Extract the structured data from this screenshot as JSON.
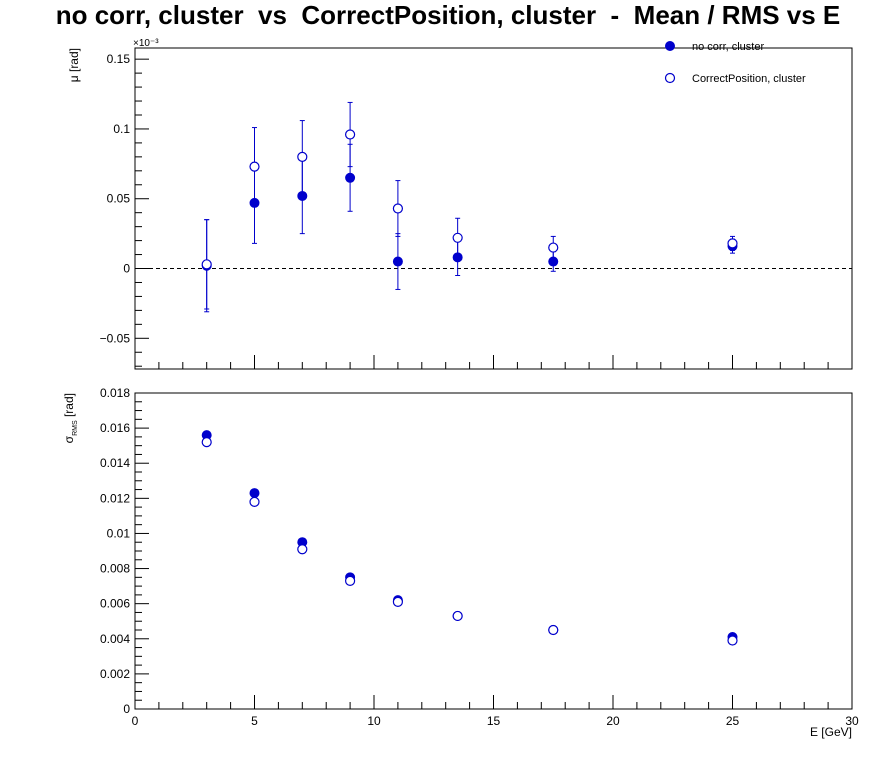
{
  "title": "no corr, cluster  vs  CorrectPosition, cluster  -  Mean / RMS vs E",
  "colors": {
    "series": "#0000cc",
    "frame": "#000000",
    "zero_line": "#000000"
  },
  "chart_data": [
    {
      "type": "scatter",
      "title": "",
      "ylabel": "μ  [rad]",
      "exponent_label": "×10⁻³",
      "xlim": [
        0,
        30
      ],
      "ylim": [
        -0.072,
        0.158
      ],
      "y_ticks": [
        -0.05,
        0,
        0.05,
        0.1,
        0.15
      ],
      "y_tick_labels": [
        "−0.05",
        "0",
        "0.05",
        "0.1",
        "0.15"
      ],
      "zero_line": true,
      "legend_placement": "top-right",
      "series": [
        {
          "name": "no corr, cluster",
          "marker": "filled-circle",
          "x": [
            3,
            5,
            7,
            9,
            11,
            13.5,
            17.5,
            25
          ],
          "y": [
            0.002,
            0.047,
            0.052,
            0.065,
            0.005,
            0.008,
            0.005,
            0.016
          ],
          "yerr": [
            0.033,
            0.029,
            0.027,
            0.024,
            0.02,
            0.013,
            0.007,
            0.005
          ]
        },
        {
          "name": "CorrectPosition, cluster",
          "marker": "open-circle",
          "x": [
            3,
            5,
            7,
            9,
            11,
            13.5,
            17.5,
            25
          ],
          "y": [
            0.003,
            0.073,
            0.08,
            0.096,
            0.043,
            0.022,
            0.015,
            0.018
          ],
          "yerr": [
            0.032,
            0.028,
            0.026,
            0.023,
            0.02,
            0.014,
            0.008,
            0.005
          ]
        }
      ]
    },
    {
      "type": "scatter",
      "title": "",
      "ylabel": "σ",
      "ylabel_subscript": "RMS",
      "ylabel_unit": "[rad]",
      "xlabel": "E  [GeV]",
      "xlim": [
        0,
        30
      ],
      "ylim": [
        0,
        0.018
      ],
      "x_ticks": [
        0,
        5,
        10,
        15,
        20,
        25,
        30
      ],
      "x_tick_labels": [
        "0",
        "5",
        "10",
        "15",
        "20",
        "25",
        "30"
      ],
      "y_ticks": [
        0,
        0.002,
        0.004,
        0.006,
        0.008,
        0.01,
        0.012,
        0.014,
        0.016,
        0.018
      ],
      "y_tick_labels": [
        "0",
        "0.002",
        "0.004",
        "0.006",
        "0.008",
        "0.01",
        "0.012",
        "0.014",
        "0.016",
        "0.018"
      ],
      "series": [
        {
          "name": "no corr, cluster",
          "marker": "filled-circle",
          "x": [
            3,
            5,
            7,
            9,
            11,
            13.5,
            17.5,
            25
          ],
          "y": [
            0.0156,
            0.0123,
            0.0095,
            0.0075,
            0.0062,
            0.0053,
            0.0045,
            0.0041
          ]
        },
        {
          "name": "CorrectPosition, cluster",
          "marker": "open-circle",
          "x": [
            3,
            5,
            7,
            9,
            11,
            13.5,
            17.5,
            25
          ],
          "y": [
            0.0152,
            0.0118,
            0.0091,
            0.0073,
            0.0061,
            0.0053,
            0.0045,
            0.0039
          ]
        }
      ]
    }
  ]
}
